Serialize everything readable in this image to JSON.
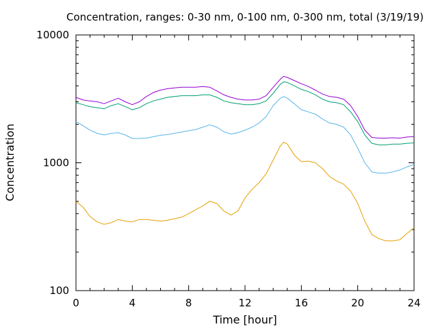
{
  "chart_data": {
    "type": "line",
    "title": "Concentration, ranges: 0-30 nm, 0-100 nm, 0-300 nm, total (3/19/19)",
    "xlabel": "Time [hour]",
    "ylabel": "Concentration",
    "xlim": [
      0,
      24
    ],
    "ylim": [
      100,
      10000
    ],
    "y_scale": "log",
    "grid": false,
    "legend": "none",
    "x_ticks": [
      0,
      4,
      8,
      12,
      16,
      20,
      24
    ],
    "x_tick_labels": [
      "0",
      "4",
      "8",
      "12",
      "16",
      "20",
      "24"
    ],
    "y_ticks": [
      100,
      1000,
      10000
    ],
    "y_tick_labels": [
      "100",
      "1000",
      "10000"
    ],
    "series": [
      {
        "color": "#e69f00",
        "x": [
          0,
          0.5,
          1,
          1.5,
          2,
          2.5,
          3,
          3.5,
          4,
          4.5,
          5,
          5.5,
          6,
          6.5,
          7,
          7.5,
          8,
          8.5,
          9,
          9.5,
          10,
          10.5,
          11,
          11.5,
          12,
          12.5,
          13,
          13.5,
          14,
          14.5,
          14.75,
          15,
          15.5,
          16,
          16.5,
          17,
          17.5,
          18,
          18.5,
          19,
          19.5,
          20,
          20.5,
          21,
          21.5,
          22,
          22.5,
          23,
          23.5,
          24
        ],
        "values": [
          500,
          450,
          380,
          345,
          330,
          340,
          360,
          350,
          345,
          360,
          360,
          355,
          350,
          355,
          365,
          375,
          400,
          430,
          460,
          500,
          480,
          420,
          390,
          420,
          530,
          620,
          700,
          820,
          1050,
          1350,
          1450,
          1400,
          1150,
          1020,
          1030,
          1000,
          900,
          780,
          720,
          680,
          600,
          480,
          350,
          275,
          255,
          245,
          245,
          250,
          280,
          310
        ]
      },
      {
        "color": "#56b4e9",
        "x": [
          0,
          0.5,
          1,
          1.5,
          2,
          2.5,
          3,
          3.5,
          4,
          4.5,
          5,
          5.5,
          6,
          6.5,
          7,
          7.5,
          8,
          8.5,
          9,
          9.5,
          10,
          10.5,
          11,
          11.5,
          12,
          12.5,
          13,
          13.5,
          14,
          14.5,
          14.75,
          15,
          15.5,
          16,
          16.5,
          17,
          17.5,
          18,
          18.5,
          19,
          19.5,
          20,
          20.5,
          21,
          21.5,
          22,
          22.5,
          23,
          23.5,
          24
        ],
        "values": [
          2100,
          1950,
          1800,
          1700,
          1650,
          1700,
          1720,
          1650,
          1550,
          1550,
          1560,
          1600,
          1640,
          1660,
          1700,
          1740,
          1780,
          1820,
          1900,
          1980,
          1900,
          1750,
          1680,
          1720,
          1800,
          1900,
          2050,
          2300,
          2800,
          3200,
          3300,
          3200,
          2900,
          2600,
          2500,
          2400,
          2200,
          2050,
          2000,
          1900,
          1650,
          1300,
          1000,
          850,
          830,
          830,
          850,
          880,
          930,
          970
        ]
      },
      {
        "color": "#009e73",
        "x": [
          0,
          0.5,
          1,
          1.5,
          2,
          2.5,
          3,
          3.5,
          4,
          4.5,
          5,
          5.5,
          6,
          6.5,
          7,
          7.5,
          8,
          8.5,
          9,
          9.5,
          10,
          10.5,
          11,
          11.5,
          12,
          12.5,
          13,
          13.5,
          14,
          14.5,
          14.75,
          15,
          15.5,
          16,
          16.5,
          17,
          17.5,
          18,
          18.5,
          19,
          19.5,
          20,
          20.5,
          21,
          21.5,
          22,
          22.5,
          23,
          23.5,
          24
        ],
        "values": [
          2950,
          2850,
          2750,
          2700,
          2650,
          2800,
          2900,
          2750,
          2600,
          2700,
          2900,
          3050,
          3150,
          3250,
          3300,
          3350,
          3350,
          3350,
          3400,
          3400,
          3250,
          3050,
          2950,
          2900,
          2850,
          2850,
          2900,
          3050,
          3500,
          4100,
          4300,
          4250,
          4000,
          3750,
          3600,
          3400,
          3150,
          3000,
          2950,
          2850,
          2500,
          2100,
          1650,
          1420,
          1380,
          1380,
          1400,
          1400,
          1420,
          1430
        ]
      },
      {
        "color": "#9400d3",
        "x": [
          0,
          0.5,
          1,
          1.5,
          2,
          2.5,
          3,
          3.5,
          4,
          4.5,
          5,
          5.5,
          6,
          6.5,
          7,
          7.5,
          8,
          8.5,
          9,
          9.5,
          10,
          10.5,
          11,
          11.5,
          12,
          12.5,
          13,
          13.5,
          14,
          14.5,
          14.75,
          15,
          15.5,
          16,
          16.5,
          17,
          17.5,
          18,
          18.5,
          19,
          19.5,
          20,
          20.5,
          21,
          21.5,
          22,
          22.5,
          23,
          23.5,
          24
        ],
        "values": [
          3250,
          3100,
          3050,
          3000,
          2900,
          3050,
          3200,
          3000,
          2850,
          3000,
          3300,
          3550,
          3700,
          3800,
          3850,
          3900,
          3900,
          3900,
          3950,
          3900,
          3650,
          3400,
          3250,
          3150,
          3100,
          3100,
          3150,
          3350,
          3900,
          4500,
          4750,
          4650,
          4400,
          4150,
          3950,
          3700,
          3450,
          3300,
          3250,
          3150,
          2800,
          2300,
          1800,
          1580,
          1560,
          1560,
          1570,
          1560,
          1590,
          1600
        ]
      }
    ]
  }
}
